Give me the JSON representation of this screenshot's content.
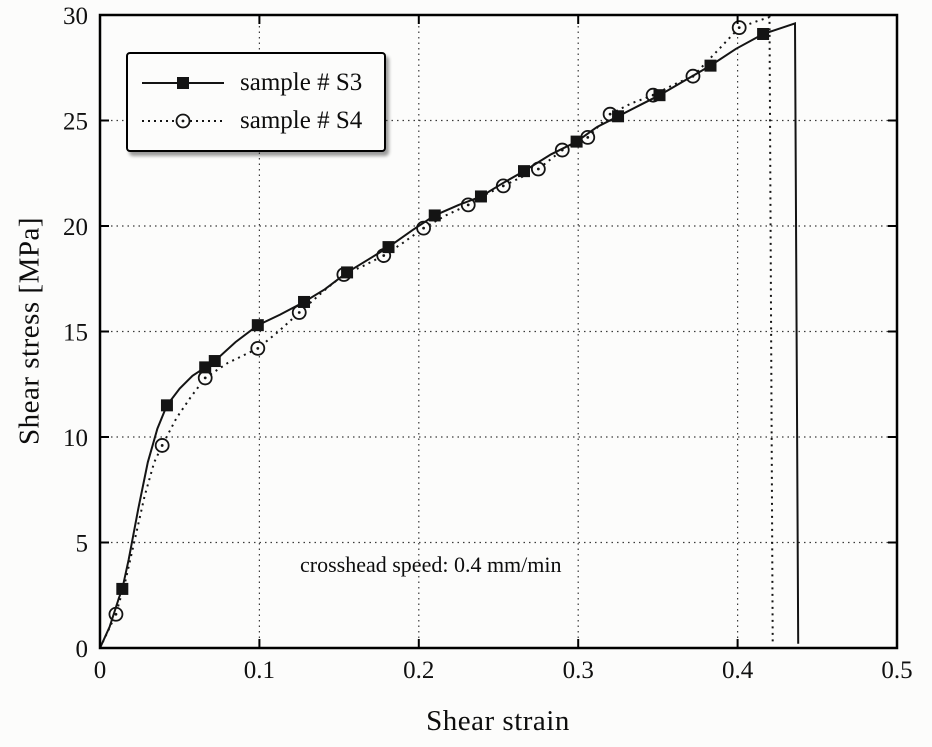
{
  "chart_data": {
    "type": "line",
    "title": "",
    "xlabel": "Shear strain",
    "ylabel": "Shear stress [MPa]",
    "xlim": [
      0,
      0.5
    ],
    "ylim": [
      0,
      30
    ],
    "xticks": [
      0,
      0.1,
      0.2,
      0.3,
      0.4,
      0.5
    ],
    "xtick_labels": [
      "0",
      "0.1",
      "0.2",
      "0.3",
      "0.4",
      "0.5"
    ],
    "yticks": [
      0,
      5,
      10,
      15,
      20,
      25,
      30
    ],
    "ytick_labels": [
      "0",
      "5",
      "10",
      "15",
      "20",
      "25",
      "30"
    ],
    "grid": true,
    "legend_position": "top-left",
    "annotation": "crosshead speed: 0.4 mm/min",
    "series": [
      {
        "name": "sample # S4",
        "line_style": "dotted",
        "marker": "open-circle",
        "color": "#141414",
        "line_points": [
          [
            0,
            0
          ],
          [
            0.005,
            0.8
          ],
          [
            0.01,
            1.6
          ],
          [
            0.016,
            3.2
          ],
          [
            0.022,
            5.2
          ],
          [
            0.028,
            7.2
          ],
          [
            0.034,
            8.8
          ],
          [
            0.039,
            9.6
          ],
          [
            0.048,
            10.9
          ],
          [
            0.057,
            11.9
          ],
          [
            0.066,
            12.8
          ],
          [
            0.08,
            13.5
          ],
          [
            0.099,
            14.2
          ],
          [
            0.112,
            15.0
          ],
          [
            0.125,
            15.9
          ],
          [
            0.14,
            16.9
          ],
          [
            0.153,
            17.7
          ],
          [
            0.165,
            18.1
          ],
          [
            0.178,
            18.6
          ],
          [
            0.19,
            19.2
          ],
          [
            0.203,
            19.9
          ],
          [
            0.217,
            20.5
          ],
          [
            0.231,
            21.0
          ],
          [
            0.242,
            21.5
          ],
          [
            0.253,
            21.9
          ],
          [
            0.264,
            22.3
          ],
          [
            0.275,
            22.7
          ],
          [
            0.29,
            23.6
          ],
          [
            0.306,
            24.2
          ],
          [
            0.32,
            25.3
          ],
          [
            0.333,
            25.8
          ],
          [
            0.347,
            26.2
          ],
          [
            0.36,
            26.7
          ],
          [
            0.372,
            27.1
          ],
          [
            0.386,
            28.2
          ],
          [
            0.401,
            29.4
          ],
          [
            0.412,
            29.7
          ],
          [
            0.42,
            29.9
          ],
          [
            0.422,
            0.3
          ]
        ],
        "marker_points": [
          [
            0.01,
            1.6
          ],
          [
            0.039,
            9.6
          ],
          [
            0.066,
            12.8
          ],
          [
            0.099,
            14.2
          ],
          [
            0.125,
            15.9
          ],
          [
            0.153,
            17.7
          ],
          [
            0.178,
            18.6
          ],
          [
            0.203,
            19.9
          ],
          [
            0.231,
            21.0
          ],
          [
            0.253,
            21.9
          ],
          [
            0.275,
            22.7
          ],
          [
            0.29,
            23.6
          ],
          [
            0.306,
            24.2
          ],
          [
            0.32,
            25.3
          ],
          [
            0.347,
            26.2
          ],
          [
            0.372,
            27.1
          ],
          [
            0.401,
            29.4
          ]
        ]
      },
      {
        "name": "sample # S3",
        "line_style": "solid",
        "marker": "filled-square",
        "color": "#141414",
        "line_points": [
          [
            0,
            0
          ],
          [
            0.006,
            1.0
          ],
          [
            0.012,
            2.4
          ],
          [
            0.014,
            2.8
          ],
          [
            0.018,
            4.2
          ],
          [
            0.024,
            6.6
          ],
          [
            0.03,
            8.8
          ],
          [
            0.036,
            10.4
          ],
          [
            0.042,
            11.5
          ],
          [
            0.05,
            12.3
          ],
          [
            0.058,
            12.9
          ],
          [
            0.066,
            13.3
          ],
          [
            0.072,
            13.6
          ],
          [
            0.085,
            14.5
          ],
          [
            0.099,
            15.3
          ],
          [
            0.113,
            15.8
          ],
          [
            0.128,
            16.4
          ],
          [
            0.141,
            17.0
          ],
          [
            0.155,
            17.8
          ],
          [
            0.168,
            18.4
          ],
          [
            0.181,
            19.0
          ],
          [
            0.196,
            19.8
          ],
          [
            0.21,
            20.5
          ],
          [
            0.225,
            21.0
          ],
          [
            0.239,
            21.4
          ],
          [
            0.252,
            22.0
          ],
          [
            0.266,
            22.6
          ],
          [
            0.283,
            23.4
          ],
          [
            0.299,
            24.0
          ],
          [
            0.312,
            24.7
          ],
          [
            0.325,
            25.2
          ],
          [
            0.338,
            25.7
          ],
          [
            0.351,
            26.2
          ],
          [
            0.367,
            26.9
          ],
          [
            0.383,
            27.6
          ],
          [
            0.399,
            28.4
          ],
          [
            0.416,
            29.1
          ],
          [
            0.428,
            29.4
          ],
          [
            0.436,
            29.6
          ],
          [
            0.438,
            0.2
          ]
        ],
        "marker_points": [
          [
            0.014,
            2.8
          ],
          [
            0.042,
            11.5
          ],
          [
            0.066,
            13.3
          ],
          [
            0.072,
            13.6
          ],
          [
            0.099,
            15.3
          ],
          [
            0.128,
            16.4
          ],
          [
            0.155,
            17.8
          ],
          [
            0.181,
            19.0
          ],
          [
            0.21,
            20.5
          ],
          [
            0.239,
            21.4
          ],
          [
            0.266,
            22.6
          ],
          [
            0.299,
            24.0
          ],
          [
            0.325,
            25.2
          ],
          [
            0.351,
            26.2
          ],
          [
            0.383,
            27.6
          ],
          [
            0.416,
            29.1
          ]
        ]
      }
    ]
  }
}
